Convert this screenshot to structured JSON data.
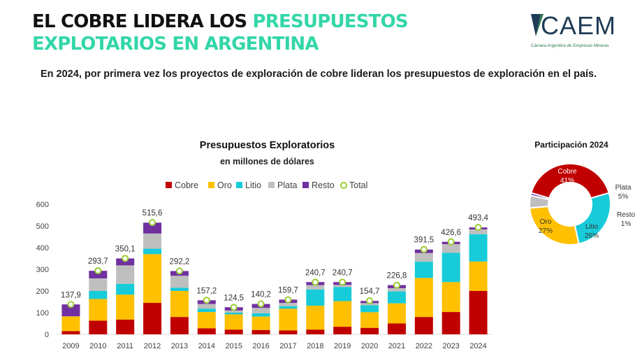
{
  "header": {
    "title_line1_black": "EL COBRE LIDERA LOS ",
    "title_line1_green": "PRESUPUESTOS",
    "title_line2_green": "EXPLOTARIOS EN ARGENTINA",
    "subtitle": "En 2024, por primera vez los proyectos de exploración de cobre lideran los presupuestos de exploración en el país."
  },
  "logo": {
    "text": "CAEM",
    "sub": "Cámara Argentina de Empresas Mineras"
  },
  "colors": {
    "Cobre": "#c00000",
    "Oro": "#ffc000",
    "Litio": "#17cbd8",
    "Plata": "#bfbfbf",
    "Resto": "#7030a0",
    "Total": "#9acd32",
    "accent_green": "#33d6a8"
  },
  "chart_data": [
    {
      "type": "bar",
      "stacked": true,
      "title": "Presupuestos Exploratorios",
      "subtitle": "en millones de dólares",
      "categories": [
        "2009",
        "2010",
        "2011",
        "2012",
        "2013",
        "2014",
        "2015",
        "2016",
        "2017",
        "2018",
        "2019",
        "2020",
        "2021",
        "2022",
        "2023",
        "2024"
      ],
      "series": [
        {
          "name": "Cobre",
          "values": [
            15,
            63,
            68,
            145,
            80,
            28,
            22,
            20,
            18,
            22,
            35,
            30,
            50,
            80,
            103,
            200
          ]
        },
        {
          "name": "Oro",
          "values": [
            68,
            100,
            115,
            225,
            120,
            75,
            70,
            62,
            100,
            110,
            118,
            72,
            93,
            180,
            138,
            136
          ]
        },
        {
          "name": "Litio",
          "values": [
            0,
            37,
            50,
            25,
            15,
            15,
            8,
            15,
            12,
            75,
            65,
            32,
            55,
            75,
            135,
            126
          ]
        },
        {
          "name": "Plata",
          "values": [
            0,
            58,
            85,
            70,
            55,
            22,
            10,
            25,
            15,
            20,
            10,
            10,
            15,
            40,
            40,
            22
          ]
        },
        {
          "name": "Resto",
          "values": [
            55,
            35,
            32,
            50,
            22,
            17,
            15,
            18,
            15,
            14,
            13,
            10,
            14,
            16,
            11,
            9
          ]
        }
      ],
      "totals": {
        "name": "Total",
        "values": [
          137.9,
          293.7,
          350.1,
          515.6,
          292.2,
          157.2,
          124.5,
          140.2,
          159.7,
          240.7,
          240.7,
          154.7,
          226.8,
          391.5,
          426.6,
          493.4
        ]
      },
      "total_labels": [
        "137,9",
        "293,7",
        "350,1",
        "515,6",
        "292,2",
        "157,2",
        "124,5",
        "140,2",
        "159,7",
        "240,7",
        "240,7",
        "154,7",
        "226,8",
        "391,5",
        "426,6",
        "493,4"
      ],
      "ylim": [
        0,
        600
      ],
      "yticks": [
        "0",
        "100",
        "200",
        "300",
        "400",
        "500",
        "600"
      ],
      "legend": [
        "Cobre",
        "Oro",
        "Litio",
        "Plata",
        "Resto",
        "Total"
      ],
      "legend_position": "top"
    },
    {
      "type": "pie",
      "donut": true,
      "title": "Participación 2024",
      "slices": [
        {
          "name": "Cobre",
          "value": 41,
          "label": "Cobre",
          "pct": "41%"
        },
        {
          "name": "Litio",
          "value": 26,
          "label": "Litio",
          "pct": "26%"
        },
        {
          "name": "Oro",
          "value": 27,
          "label": "Oro",
          "pct": "27%"
        },
        {
          "name": "Plata",
          "value": 5,
          "label": "Plata",
          "pct": "5%"
        },
        {
          "name": "Resto",
          "value": 1,
          "label": "Resto",
          "pct": "1%"
        }
      ]
    }
  ]
}
